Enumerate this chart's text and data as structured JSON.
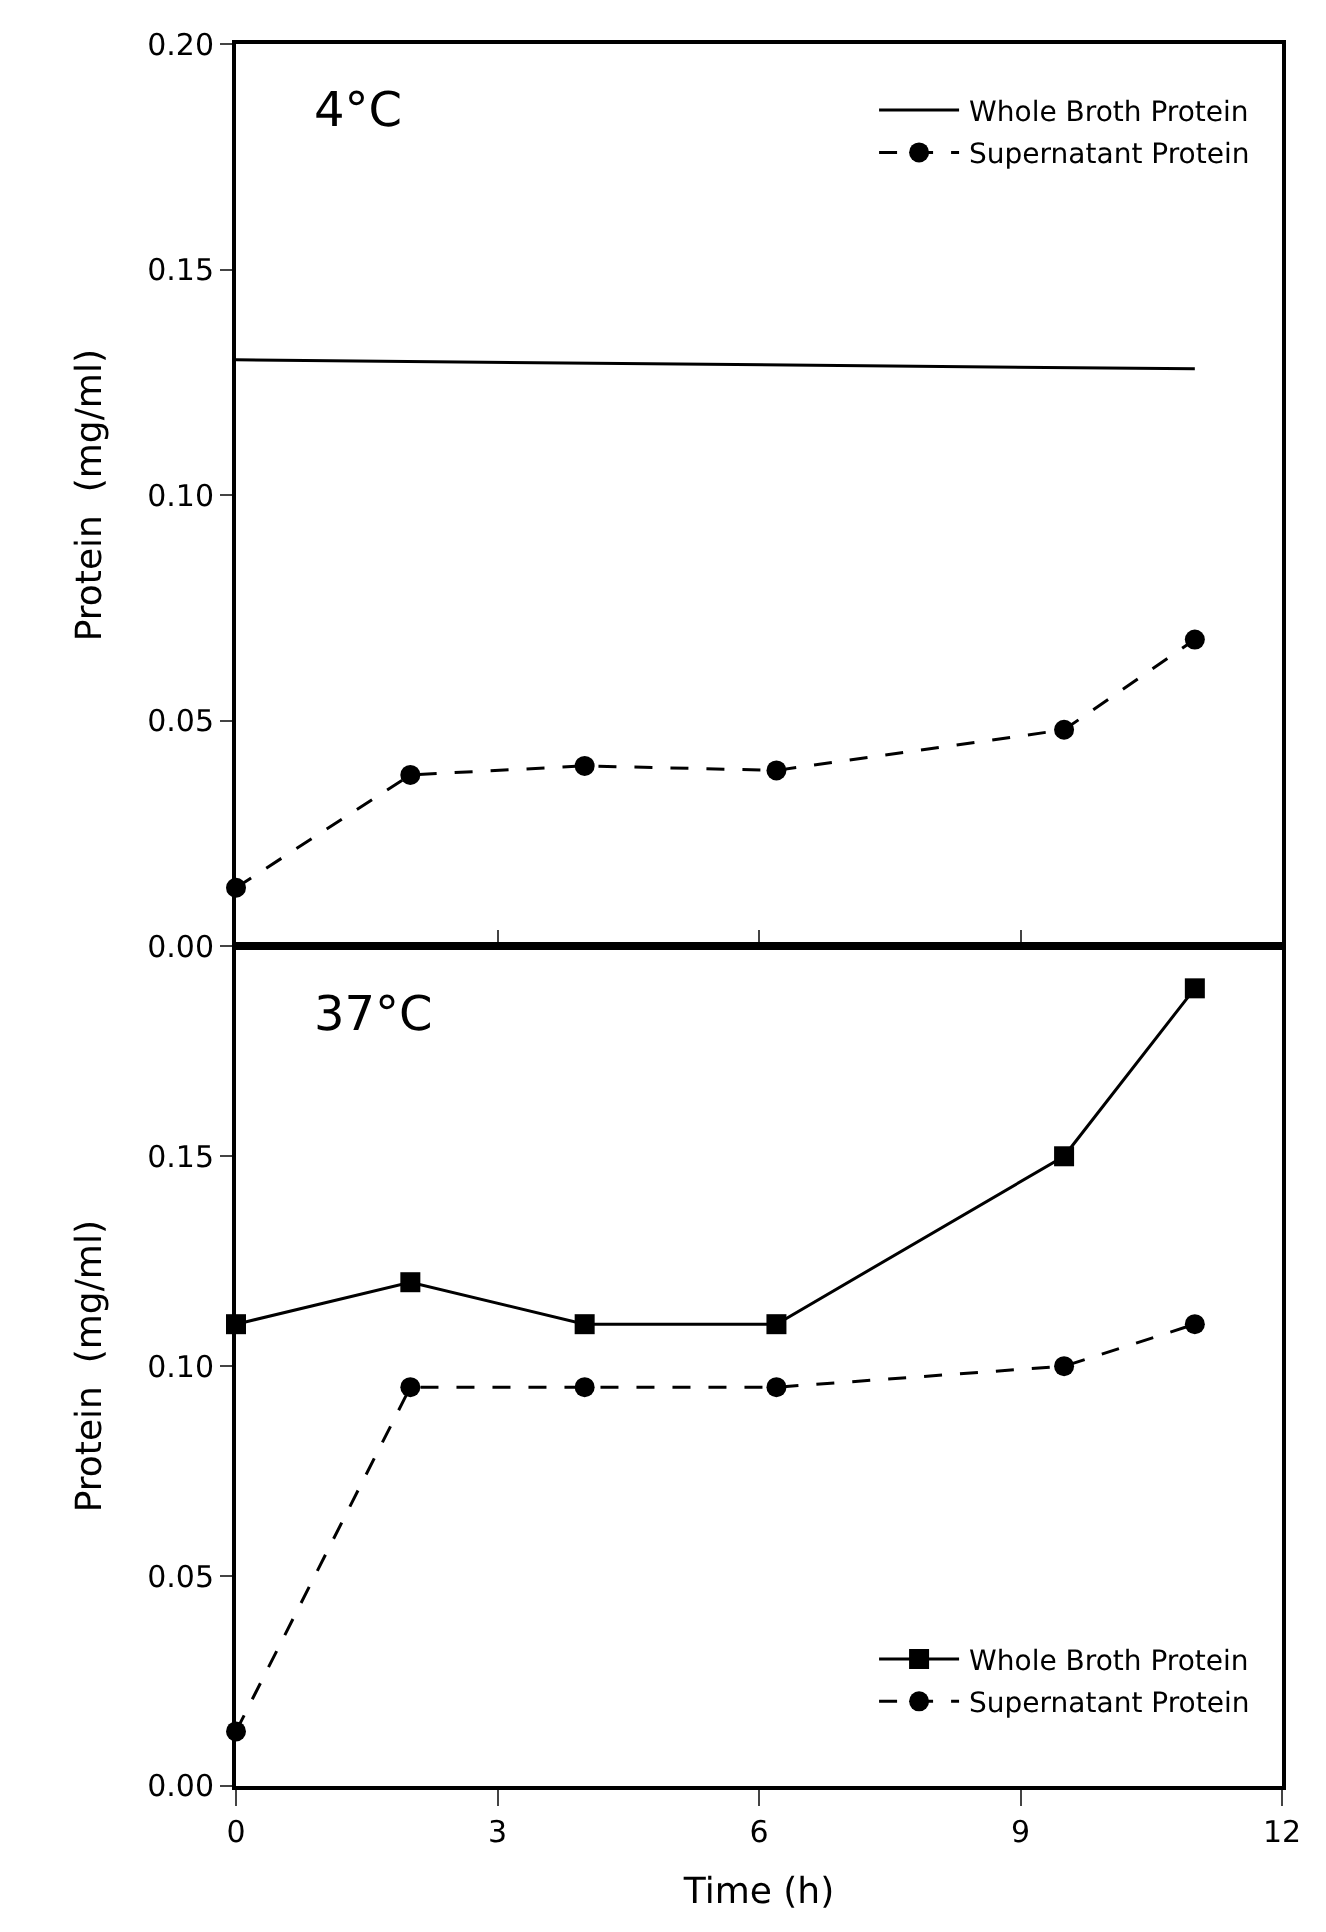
{
  "chart_data": [
    {
      "type": "line",
      "ylabel": "Protein  (mg/ml)",
      "annotations": [
        "4°C"
      ],
      "xlim": [
        0,
        12
      ],
      "xticks": [
        {
          "value": 0,
          "label": null
        },
        {
          "value": 3,
          "label": null
        },
        {
          "value": 6,
          "label": null
        },
        {
          "value": 9,
          "label": null
        },
        {
          "value": 12,
          "label": null
        }
      ],
      "ylim": [
        0,
        0.2
      ],
      "yticks": [
        {
          "value": 0,
          "label": "0.00"
        },
        {
          "value": 0.05,
          "label": "0.05"
        },
        {
          "value": 0.1,
          "label": "0.10"
        },
        {
          "value": 0.15,
          "label": "0.15"
        },
        {
          "value": 0.2,
          "label": "0.20"
        }
      ],
      "tick_labels": "y",
      "grid": false,
      "legend": "top right",
      "series": [
        {
          "name": "Whole Broth Protein",
          "color": "#000000",
          "x": [
            0,
            11
          ],
          "values": [
            0.13,
            0.128
          ],
          "marker": "none",
          "line_style": "solid"
        },
        {
          "name": "Supernatant Protein",
          "color": "#000000",
          "x": [
            0,
            2,
            4,
            6.2,
            9.5,
            11
          ],
          "values": [
            0.013,
            0.038,
            0.04,
            0.039,
            0.048,
            0.068
          ],
          "marker": "circle",
          "line_style": "dashed"
        }
      ]
    },
    {
      "type": "line",
      "xlabel": "Time (h)",
      "ylabel": "Protein  (mg/ml)",
      "annotations": [
        "37°C"
      ],
      "xlim": [
        0,
        12
      ],
      "xticks": [
        0,
        3,
        6,
        9,
        12
      ],
      "ylim": [
        0,
        0.2
      ],
      "yticks": [
        {
          "value": 0,
          "label": "0.00"
        },
        {
          "value": 0.05,
          "label": "0.05"
        },
        {
          "value": 0.1,
          "label": "0.10"
        },
        {
          "value": 0.15,
          "label": "0.15"
        },
        {
          "value": 0.2,
          "label": null
        }
      ],
      "grid": false,
      "legend": "bottom right",
      "series": [
        {
          "name": "Whole Broth Protein",
          "color": "#000000",
          "x": [
            0,
            2,
            4,
            6.2,
            9.5,
            11
          ],
          "values": [
            0.11,
            0.12,
            0.11,
            0.11,
            0.15,
            0.19
          ],
          "marker": "square",
          "line_style": "solid"
        },
        {
          "name": "Supernatant Protein",
          "color": "#000000",
          "x": [
            0,
            2,
            4,
            6.2,
            9.5,
            11
          ],
          "values": [
            0.013,
            0.095,
            0.095,
            0.095,
            0.1,
            0.11
          ],
          "marker": "circle",
          "line_style": "dashed"
        }
      ]
    }
  ]
}
